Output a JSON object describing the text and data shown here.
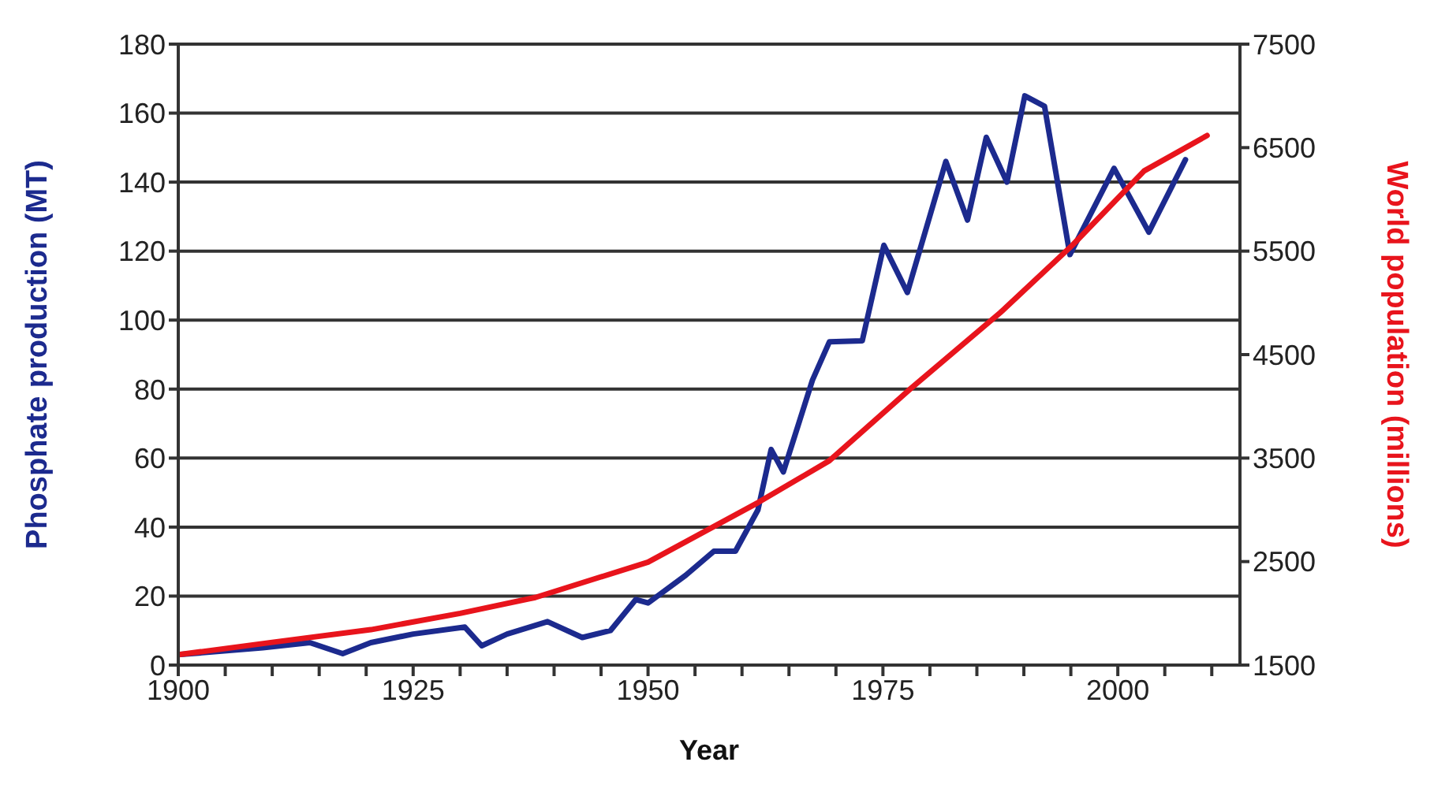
{
  "chart_data": {
    "type": "line",
    "xlabel": "Year",
    "ylabel": "Phosphate production (MT)",
    "y2label": "World population (millions)",
    "xlim": [
      1900,
      2013
    ],
    "xticks": [
      1900,
      {
        "value": 1905,
        "label": null
      },
      {
        "value": 1910,
        "label": null
      },
      {
        "value": 1915,
        "label": null
      },
      {
        "value": 1920,
        "label": null
      },
      1925,
      {
        "value": 1930,
        "label": null
      },
      {
        "value": 1935,
        "label": null
      },
      {
        "value": 1940,
        "label": null
      },
      {
        "value": 1945,
        "label": null
      },
      1950,
      {
        "value": 1955,
        "label": null
      },
      {
        "value": 1960,
        "label": null
      },
      {
        "value": 1965,
        "label": null
      },
      {
        "value": 1970,
        "label": null
      },
      1975,
      {
        "value": 1980,
        "label": null
      },
      {
        "value": 1985,
        "label": null
      },
      {
        "value": 1990,
        "label": null
      },
      {
        "value": 1995,
        "label": null
      },
      2000,
      {
        "value": 2005,
        "label": null
      },
      {
        "value": 2010,
        "label": null
      }
    ],
    "ylim": [
      0,
      180
    ],
    "yticks": [
      0,
      20,
      40,
      60,
      80,
      100,
      120,
      140,
      160,
      180
    ],
    "y2lim": [
      1500,
      7500
    ],
    "y2ticks": [
      1500,
      2500,
      3500,
      4500,
      5500,
      6500,
      7500
    ],
    "grid": "y",
    "legend": false,
    "marker": "none",
    "line_style": "solid",
    "series": [
      {
        "color": "#1c2a8e",
        "x": [
          1900,
          1909,
          1914,
          1917.5,
          1920.5,
          1925,
          1930.5,
          1932.3,
          1935,
          1939.3,
          1943,
          1946,
          1948.7,
          1950,
          1954,
          1957,
          1959.3,
          1961.7,
          1963.1,
          1964.4,
          1967.5,
          1969.3,
          1972.8,
          1975.1,
          1977.6,
          1981.7,
          1984,
          1986,
          1988.2,
          1990.1,
          1992.2,
          1994.9,
          1999.6,
          2003.3,
          2007.2
        ],
        "values": [
          3,
          5,
          6.5,
          3.3,
          6.5,
          9,
          11,
          5.6,
          9,
          12.6,
          8,
          10,
          19,
          18,
          26,
          33,
          33,
          45,
          62.5,
          56,
          82.6,
          93.7,
          94,
          121.7,
          108,
          146,
          129,
          153,
          140,
          165,
          162,
          119,
          144,
          125.5,
          146.5
        ]
      },
      {
        "color": "#e8141c",
        "axis": "y2",
        "x": [
          1900,
          1910,
          1920.5,
          1930,
          1938,
          1950,
          1961.7,
          1969.3,
          1978,
          1987.5,
          1995.2,
          2002.8,
          2009.5
        ],
        "values": [
          1600,
          1720,
          1842,
          2000,
          2153,
          2495,
          3070,
          3475,
          4175,
          4906,
          5560,
          6275,
          6617
        ]
      }
    ]
  }
}
